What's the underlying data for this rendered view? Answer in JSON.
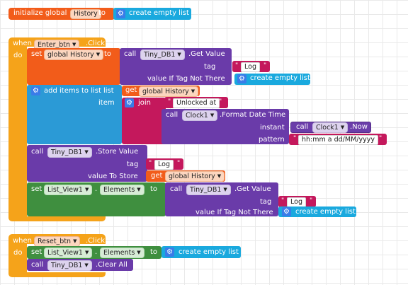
{
  "init_block": {
    "label": "initialize global",
    "var_name": "History",
    "to_label": "to",
    "value": "create empty list"
  },
  "enter_event": {
    "when": "when",
    "component": "Enter_btn",
    "event": ".Click",
    "do": "do",
    "set_history": {
      "set": "set",
      "var": "global History",
      "to": "to",
      "call": "call",
      "db": "Tiny_DB1",
      "method": ".Get Value",
      "tag_label": "tag",
      "tag_value": "Log",
      "vitnt_label": "value If Tag Not There",
      "vitnt_value": "create empty list"
    },
    "add_items": {
      "label": "add items to list",
      "list_label": "list",
      "get": "get",
      "var": "global History",
      "item_label": "item",
      "join": "join",
      "unlocked": "Unlocked at",
      "call": "call",
      "clock": "Clock1",
      "format_method": ".Format Date Time",
      "instant_label": "instant",
      "clock_now_call": "call",
      "clock_now": "Clock1",
      "now_method": ".Now",
      "pattern_label": "pattern",
      "pattern_value": "hh:mm a dd/MM/yyyy"
    },
    "store_value": {
      "call": "call",
      "db": "Tiny_DB1",
      "method": ".Store Value",
      "tag_label": "tag",
      "tag_value": "Log",
      "vts_label": "value To Store",
      "get": "get",
      "var": "global History"
    },
    "set_list": {
      "set": "set",
      "component": "List_View1",
      "prop": "Elements",
      "to": "to",
      "call": "call",
      "db": "Tiny_DB1",
      "method": ".Get Value",
      "tag_label": "tag",
      "tag_value": "Log",
      "vitnt_label": "value If Tag Not There",
      "vitnt_value": "create empty list"
    }
  },
  "reset_event": {
    "when": "when",
    "component": "Reset_btn",
    "event": ".Click",
    "do": "do",
    "set": "set",
    "list_component": "List_View1",
    "prop": "Elements",
    "to": "to",
    "value": "create empty list",
    "call": "call",
    "db": "Tiny_DB1",
    "method": ".Clear All"
  },
  "colors": {
    "variables": "#f25c1a",
    "events": "#f5a31a",
    "procedures": "#6a3ba9",
    "lists": "#2b9ad6",
    "text": "#c4185c",
    "components": "#3f8f3f"
  }
}
